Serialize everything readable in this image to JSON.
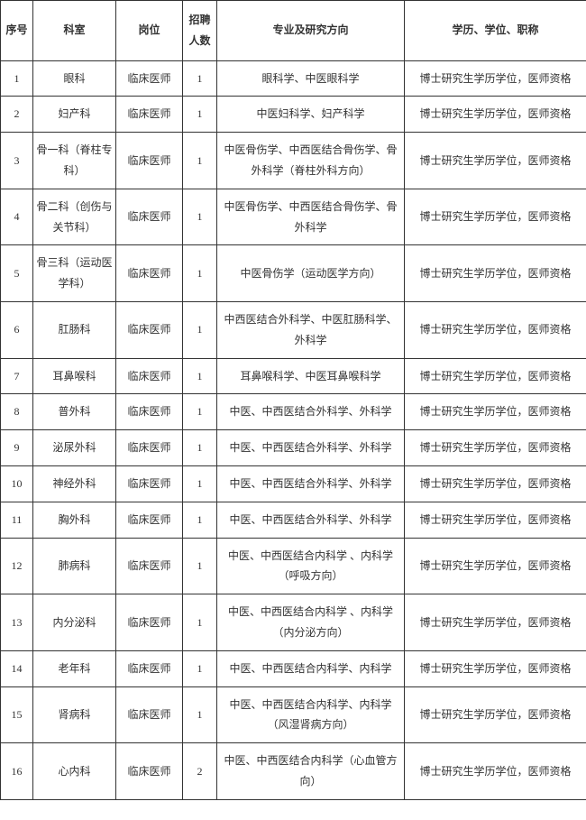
{
  "headers": {
    "seq": "序号",
    "dept": "科室",
    "post": "岗位",
    "count": "招聘人数",
    "major": "专业及研究方向",
    "qual": "学历、学位、职称"
  },
  "rows": [
    {
      "seq": "1",
      "dept": "眼科",
      "post": "临床医师",
      "count": "1",
      "major": "眼科学、中医眼科学",
      "qual": "博士研究生学历学位，医师资格"
    },
    {
      "seq": "2",
      "dept": "妇产科",
      "post": "临床医师",
      "count": "1",
      "major": "中医妇科学、妇产科学",
      "qual": "博士研究生学历学位，医师资格"
    },
    {
      "seq": "3",
      "dept": "骨一科（脊柱专科）",
      "post": "临床医师",
      "count": "1",
      "major": "中医骨伤学、中西医结合骨伤学、骨外科学（脊柱外科方向）",
      "qual": "博士研究生学历学位，医师资格"
    },
    {
      "seq": "4",
      "dept": "骨二科（创伤与关节科）",
      "post": "临床医师",
      "count": "1",
      "major": "中医骨伤学、中西医结合骨伤学、骨外科学",
      "qual": "博士研究生学历学位，医师资格"
    },
    {
      "seq": "5",
      "dept": "骨三科（运动医学科）",
      "post": "临床医师",
      "count": "1",
      "major": "中医骨伤学（运动医学方向）",
      "qual": "博士研究生学历学位，医师资格"
    },
    {
      "seq": "6",
      "dept": "肛肠科",
      "post": "临床医师",
      "count": "1",
      "major": "中西医结合外科学、中医肛肠科学、外科学",
      "qual": "博士研究生学历学位，医师资格"
    },
    {
      "seq": "7",
      "dept": "耳鼻喉科",
      "post": "临床医师",
      "count": "1",
      "major": "耳鼻喉科学、中医耳鼻喉科学",
      "qual": "博士研究生学历学位，医师资格"
    },
    {
      "seq": "8",
      "dept": "普外科",
      "post": "临床医师",
      "count": "1",
      "major": "中医、中西医结合外科学、外科学",
      "qual": "博士研究生学历学位，医师资格"
    },
    {
      "seq": "9",
      "dept": "泌尿外科",
      "post": "临床医师",
      "count": "1",
      "major": "中医、中西医结合外科学、外科学",
      "qual": "博士研究生学历学位，医师资格"
    },
    {
      "seq": "10",
      "dept": "神经外科",
      "post": "临床医师",
      "count": "1",
      "major": "中医、中西医结合外科学、外科学",
      "qual": "博士研究生学历学位，医师资格"
    },
    {
      "seq": "11",
      "dept": "胸外科",
      "post": "临床医师",
      "count": "1",
      "major": "中医、中西医结合外科学、外科学",
      "qual": "博士研究生学历学位，医师资格"
    },
    {
      "seq": "12",
      "dept": "肺病科",
      "post": "临床医师",
      "count": "1",
      "major": "中医、中西医结合内科学 、内科学（呼吸方向）",
      "qual": "博士研究生学历学位，医师资格"
    },
    {
      "seq": "13",
      "dept": "内分泌科",
      "post": "临床医师",
      "count": "1",
      "major": "中医、中西医结合内科学 、内科学（内分泌方向）",
      "qual": "博士研究生学历学位，医师资格"
    },
    {
      "seq": "14",
      "dept": "老年科",
      "post": "临床医师",
      "count": "1",
      "major": "中医、中西医结合内科学、内科学",
      "qual": "博士研究生学历学位，医师资格"
    },
    {
      "seq": "15",
      "dept": "肾病科",
      "post": "临床医师",
      "count": "1",
      "major": "中医、中西医结合内科学、内科学（风湿肾病方向）",
      "qual": "博士研究生学历学位，医师资格"
    },
    {
      "seq": "16",
      "dept": "心内科",
      "post": "临床医师",
      "count": "2",
      "major": "中医、中西医结合内科学（心血管方向）",
      "qual": "博士研究生学历学位，医师资格"
    }
  ]
}
